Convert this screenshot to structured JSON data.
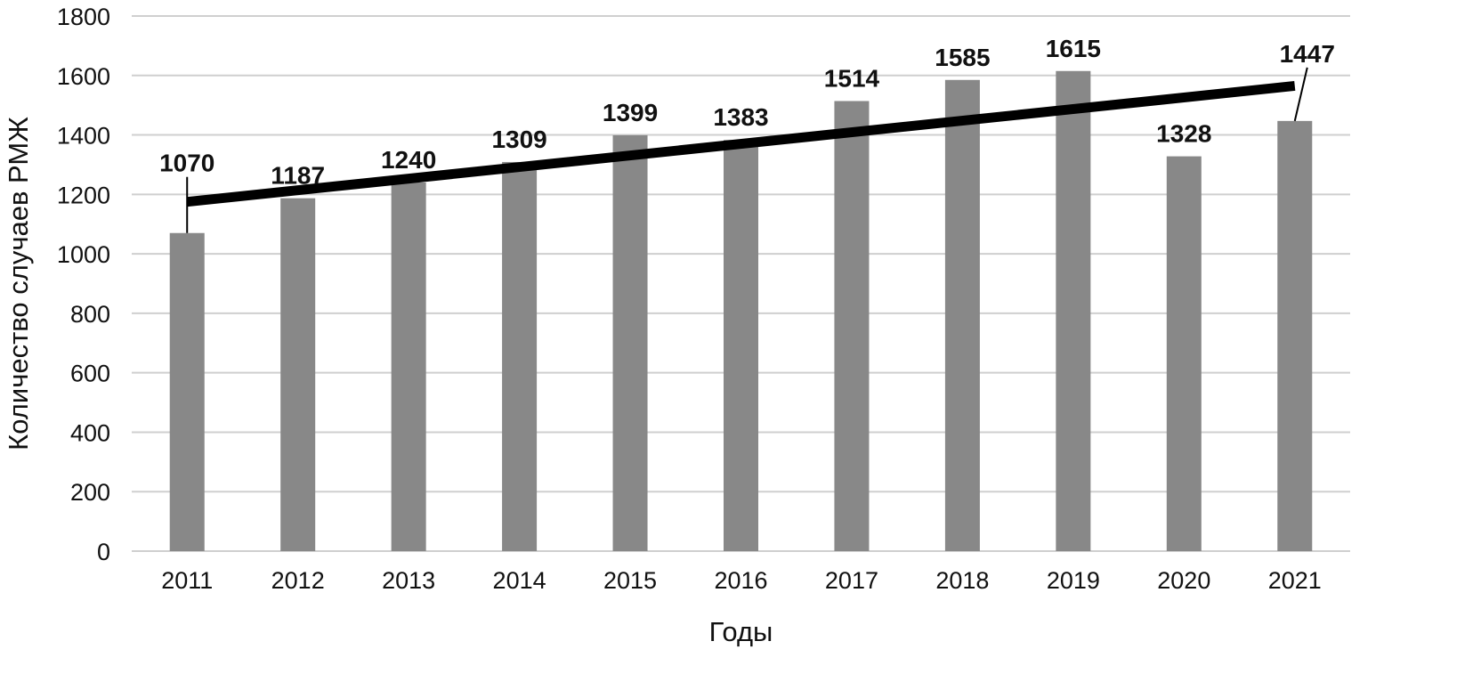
{
  "chart_data": {
    "type": "bar",
    "xlabel": "Годы",
    "ylabel": "Количество случаев РМЖ",
    "categories": [
      "2011",
      "2012",
      "2013",
      "2014",
      "2015",
      "2016",
      "2017",
      "2018",
      "2019",
      "2020",
      "2021"
    ],
    "values": [
      1070,
      1187,
      1240,
      1309,
      1399,
      1383,
      1514,
      1585,
      1615,
      1328,
      1447
    ],
    "value_labels": [
      "1070",
      "1187",
      "1240",
      "1309",
      "1399",
      "1383",
      "1514",
      "1585",
      "1615",
      "1328",
      "1447"
    ],
    "ylim": [
      0,
      1800
    ],
    "yticks": [
      0,
      200,
      400,
      600,
      800,
      1000,
      1200,
      1400,
      1600,
      1800
    ],
    "ytick_labels": [
      "0",
      "200",
      "400",
      "600",
      "800",
      "1000",
      "1200",
      "1400",
      "1600",
      "1800"
    ],
    "grid": true,
    "legend": "none",
    "bar_color": "#888888",
    "trendline": {
      "type": "linear",
      "color": "#000000",
      "from": {
        "x": "2011",
        "y": 1175
      },
      "to": {
        "x": "2021",
        "y": 1565
      }
    }
  }
}
